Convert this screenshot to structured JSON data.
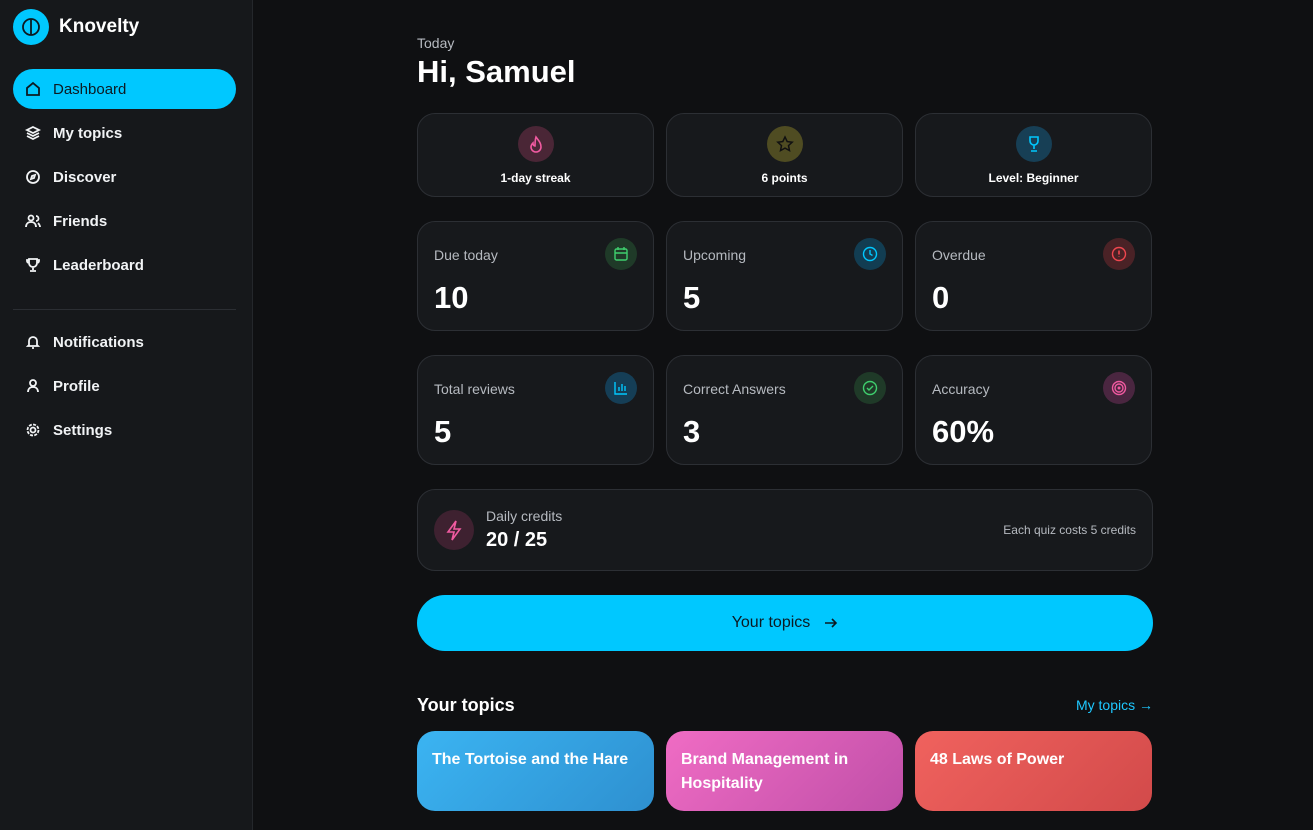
{
  "sidebar": {
    "brand": "Knovelty",
    "nav": [
      "Dashboard",
      "My topics",
      "Discover",
      "Friends",
      "Leaderboard"
    ],
    "secondary": [
      "Notifications",
      "Profile",
      "Settings"
    ]
  },
  "header": {
    "eyebrow": "Today",
    "greeting": "Hi, Samuel"
  },
  "badges": [
    "1-day streak",
    "6 points",
    "Level: Beginner"
  ],
  "stats": [
    {
      "label": "Due today",
      "value": 10
    },
    {
      "label": "Upcoming",
      "value": 5
    },
    {
      "label": "Overdue",
      "value": 0
    },
    {
      "label": "Total reviews",
      "value": 5
    },
    {
      "label": "Correct Answers",
      "value": 3
    },
    {
      "label": "Accuracy",
      "value": "60%"
    }
  ],
  "credits": {
    "label": "Daily credits",
    "value": "20 / 25",
    "note": "Each quiz costs 5 credits"
  },
  "cta": "Your topics",
  "topics": {
    "title": "Your topics",
    "link": "My topics →",
    "cards": [
      "The Tortoise and the Hare",
      "Brand Management in Hospitality",
      "48 Laws of Power"
    ]
  }
}
